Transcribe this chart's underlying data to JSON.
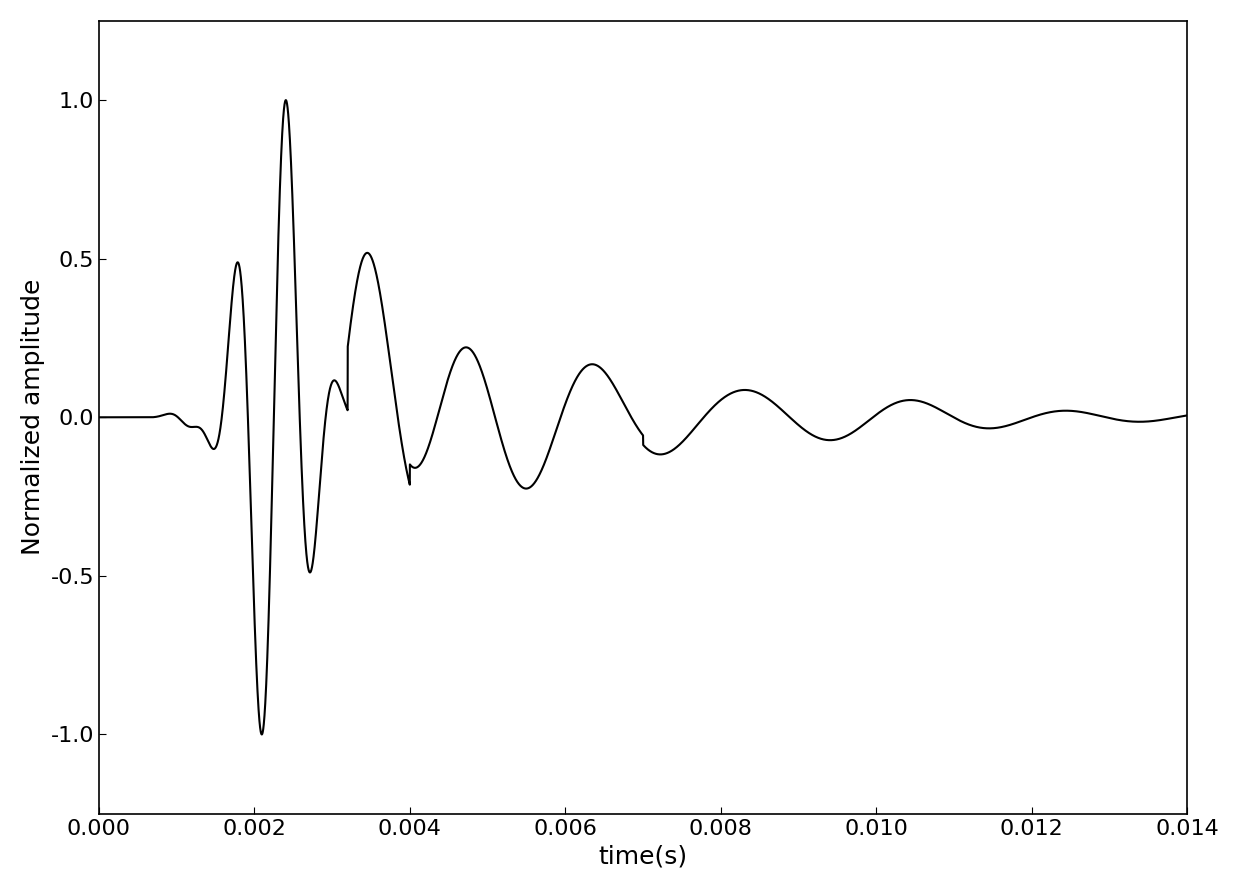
{
  "xlabel": "time(s)",
  "ylabel": "Normalized amplitude",
  "xlim": [
    0.0,
    0.014
  ],
  "ylim": [
    -1.25,
    1.25
  ],
  "xticks": [
    0.0,
    0.002,
    0.004,
    0.006,
    0.008,
    0.01,
    0.012,
    0.014
  ],
  "yticks": [
    -1.0,
    -0.5,
    0.0,
    0.5,
    1.0
  ],
  "line_color": "#000000",
  "line_width": 1.5,
  "background_color": "#ffffff",
  "xlabel_fontsize": 18,
  "ylabel_fontsize": 18,
  "tick_fontsize": 16,
  "spine_linewidth": 1.2
}
